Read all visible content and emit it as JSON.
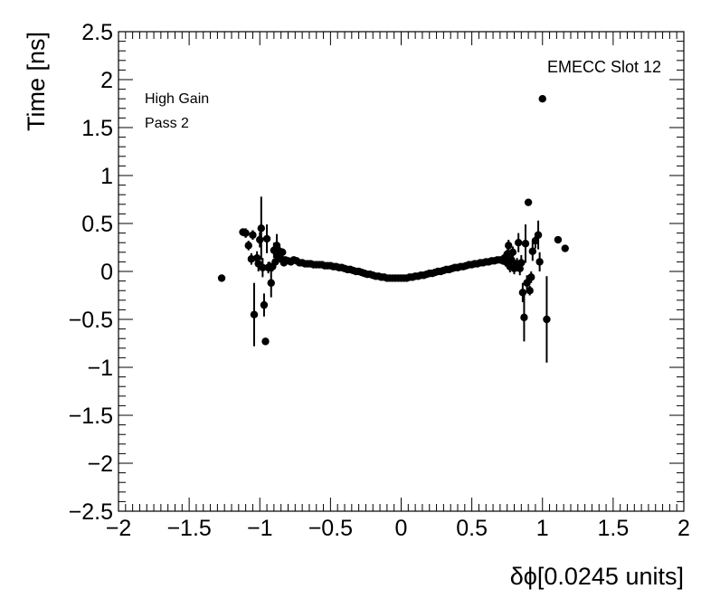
{
  "chart_data": {
    "type": "scatter",
    "title": "",
    "xlabel": "δϕ[0.0245 units]",
    "ylabel": "Time [ns]",
    "xlim": [
      -2,
      2
    ],
    "ylim": [
      -2.5,
      2.5
    ],
    "x_ticks": [
      -2,
      -1.5,
      -1,
      -0.5,
      0,
      0.5,
      1,
      1.5,
      2
    ],
    "x_tick_labels": [
      "−2",
      "−1.5",
      "−1",
      "−0.5",
      "0",
      "0.5",
      "1",
      "1.5",
      "2"
    ],
    "y_ticks": [
      -2.5,
      -2,
      -1.5,
      -1,
      -0.5,
      0,
      0.5,
      1,
      1.5,
      2,
      2.5
    ],
    "y_tick_labels": [
      "−2.5",
      "−2",
      "−1.5",
      "−1",
      "−0.5",
      "0",
      "0.5",
      "1",
      "1.5",
      "2",
      "2.5"
    ],
    "grid": false,
    "legend": "none",
    "marker_color": "#000000",
    "annotations": {
      "top_right": "EMECC Slot 12",
      "top_left_line1": "High Gain",
      "top_left_line2": "Pass 2"
    },
    "points": [
      {
        "x": -1.27,
        "y": -0.07,
        "err": 0.0
      },
      {
        "x": -1.12,
        "y": 0.41,
        "err": 0.04
      },
      {
        "x": -1.1,
        "y": 0.4,
        "err": 0.05
      },
      {
        "x": -1.08,
        "y": 0.27,
        "err": 0.05
      },
      {
        "x": -1.06,
        "y": 0.13,
        "err": 0.06
      },
      {
        "x": -1.05,
        "y": 0.38,
        "err": 0.05
      },
      {
        "x": -1.04,
        "y": -0.45,
        "err": 0.33
      },
      {
        "x": -1.02,
        "y": 0.14,
        "err": 0.07
      },
      {
        "x": -1.01,
        "y": 0.08,
        "err": 0.08
      },
      {
        "x": -1.0,
        "y": 0.33,
        "err": 0.08
      },
      {
        "x": -0.99,
        "y": 0.45,
        "err": 0.33
      },
      {
        "x": -0.98,
        "y": 0.04,
        "err": 0.1
      },
      {
        "x": -0.97,
        "y": -0.35,
        "err": 0.12
      },
      {
        "x": -0.96,
        "y": -0.73,
        "err": 0.0
      },
      {
        "x": -0.95,
        "y": 0.34,
        "err": 0.15
      },
      {
        "x": -0.94,
        "y": 0.04,
        "err": 0.06
      },
      {
        "x": -0.93,
        "y": 0.05,
        "err": 0.05
      },
      {
        "x": -0.92,
        "y": -0.12,
        "err": 0.15
      },
      {
        "x": -0.91,
        "y": 0.05,
        "err": 0.05
      },
      {
        "x": -0.9,
        "y": 0.22,
        "err": 0.08
      },
      {
        "x": -0.89,
        "y": 0.1,
        "err": 0.05
      },
      {
        "x": -0.88,
        "y": 0.27,
        "err": 0.12
      },
      {
        "x": -0.87,
        "y": 0.17,
        "err": 0.06
      },
      {
        "x": -0.86,
        "y": 0.21,
        "err": 0.05
      },
      {
        "x": -0.85,
        "y": 0.13,
        "err": 0.04
      },
      {
        "x": -0.84,
        "y": 0.2,
        "err": 0.04
      },
      {
        "x": -0.83,
        "y": 0.09,
        "err": 0.03
      },
      {
        "x": -0.82,
        "y": 0.12,
        "err": 0.02
      },
      {
        "x": -0.8,
        "y": 0.11,
        "err": 0.02
      },
      {
        "x": -0.78,
        "y": 0.1,
        "err": 0.0
      },
      {
        "x": -0.76,
        "y": 0.12,
        "err": 0.0
      },
      {
        "x": -0.74,
        "y": 0.11,
        "err": 0.0
      },
      {
        "x": -0.72,
        "y": 0.09,
        "err": 0.0
      },
      {
        "x": -0.7,
        "y": 0.09,
        "err": 0.0
      },
      {
        "x": -0.68,
        "y": 0.08,
        "err": 0.0
      },
      {
        "x": -0.66,
        "y": 0.08,
        "err": 0.0
      },
      {
        "x": -0.64,
        "y": 0.08,
        "err": 0.0
      },
      {
        "x": -0.62,
        "y": 0.07,
        "err": 0.0
      },
      {
        "x": -0.6,
        "y": 0.07,
        "err": 0.0
      },
      {
        "x": -0.58,
        "y": 0.07,
        "err": 0.0
      },
      {
        "x": -0.56,
        "y": 0.07,
        "err": 0.0
      },
      {
        "x": -0.54,
        "y": 0.06,
        "err": 0.0
      },
      {
        "x": -0.52,
        "y": 0.06,
        "err": 0.0
      },
      {
        "x": -0.5,
        "y": 0.06,
        "err": 0.0
      },
      {
        "x": -0.48,
        "y": 0.05,
        "err": 0.0
      },
      {
        "x": -0.46,
        "y": 0.05,
        "err": 0.0
      },
      {
        "x": -0.44,
        "y": 0.04,
        "err": 0.0
      },
      {
        "x": -0.42,
        "y": 0.04,
        "err": 0.0
      },
      {
        "x": -0.4,
        "y": 0.03,
        "err": 0.0
      },
      {
        "x": -0.38,
        "y": 0.02,
        "err": 0.0
      },
      {
        "x": -0.36,
        "y": 0.02,
        "err": 0.0
      },
      {
        "x": -0.34,
        "y": 0.01,
        "err": 0.0
      },
      {
        "x": -0.32,
        "y": 0.0,
        "err": 0.0
      },
      {
        "x": -0.3,
        "y": 0.0,
        "err": 0.0
      },
      {
        "x": -0.28,
        "y": -0.01,
        "err": 0.0
      },
      {
        "x": -0.26,
        "y": -0.02,
        "err": 0.0
      },
      {
        "x": -0.24,
        "y": -0.03,
        "err": 0.0
      },
      {
        "x": -0.22,
        "y": -0.03,
        "err": 0.0
      },
      {
        "x": -0.2,
        "y": -0.04,
        "err": 0.0
      },
      {
        "x": -0.18,
        "y": -0.05,
        "err": 0.0
      },
      {
        "x": -0.16,
        "y": -0.05,
        "err": 0.0
      },
      {
        "x": -0.14,
        "y": -0.06,
        "err": 0.0
      },
      {
        "x": -0.12,
        "y": -0.06,
        "err": 0.0
      },
      {
        "x": -0.1,
        "y": -0.07,
        "err": 0.0
      },
      {
        "x": -0.08,
        "y": -0.07,
        "err": 0.0
      },
      {
        "x": -0.06,
        "y": -0.07,
        "err": 0.0
      },
      {
        "x": -0.04,
        "y": -0.07,
        "err": 0.0
      },
      {
        "x": -0.02,
        "y": -0.07,
        "err": 0.0
      },
      {
        "x": 0.0,
        "y": -0.07,
        "err": 0.0
      },
      {
        "x": 0.02,
        "y": -0.07,
        "err": 0.0
      },
      {
        "x": 0.04,
        "y": -0.07,
        "err": 0.0
      },
      {
        "x": 0.06,
        "y": -0.06,
        "err": 0.0
      },
      {
        "x": 0.08,
        "y": -0.06,
        "err": 0.0
      },
      {
        "x": 0.1,
        "y": -0.05,
        "err": 0.0
      },
      {
        "x": 0.12,
        "y": -0.05,
        "err": 0.0
      },
      {
        "x": 0.14,
        "y": -0.04,
        "err": 0.0
      },
      {
        "x": 0.16,
        "y": -0.04,
        "err": 0.0
      },
      {
        "x": 0.18,
        "y": -0.03,
        "err": 0.0
      },
      {
        "x": 0.2,
        "y": -0.02,
        "err": 0.0
      },
      {
        "x": 0.22,
        "y": -0.02,
        "err": 0.0
      },
      {
        "x": 0.24,
        "y": -0.01,
        "err": 0.0
      },
      {
        "x": 0.26,
        "y": 0.0,
        "err": 0.0
      },
      {
        "x": 0.28,
        "y": 0.0,
        "err": 0.0
      },
      {
        "x": 0.3,
        "y": 0.01,
        "err": 0.0
      },
      {
        "x": 0.32,
        "y": 0.02,
        "err": 0.0
      },
      {
        "x": 0.34,
        "y": 0.02,
        "err": 0.0
      },
      {
        "x": 0.36,
        "y": 0.03,
        "err": 0.0
      },
      {
        "x": 0.38,
        "y": 0.04,
        "err": 0.0
      },
      {
        "x": 0.4,
        "y": 0.04,
        "err": 0.0
      },
      {
        "x": 0.42,
        "y": 0.05,
        "err": 0.0
      },
      {
        "x": 0.44,
        "y": 0.05,
        "err": 0.0
      },
      {
        "x": 0.46,
        "y": 0.06,
        "err": 0.0
      },
      {
        "x": 0.48,
        "y": 0.07,
        "err": 0.0
      },
      {
        "x": 0.5,
        "y": 0.07,
        "err": 0.0
      },
      {
        "x": 0.52,
        "y": 0.08,
        "err": 0.0
      },
      {
        "x": 0.54,
        "y": 0.08,
        "err": 0.0
      },
      {
        "x": 0.56,
        "y": 0.09,
        "err": 0.0
      },
      {
        "x": 0.58,
        "y": 0.09,
        "err": 0.0
      },
      {
        "x": 0.6,
        "y": 0.1,
        "err": 0.0
      },
      {
        "x": 0.62,
        "y": 0.1,
        "err": 0.0
      },
      {
        "x": 0.64,
        "y": 0.11,
        "err": 0.0
      },
      {
        "x": 0.66,
        "y": 0.11,
        "err": 0.0
      },
      {
        "x": 0.68,
        "y": 0.12,
        "err": 0.02
      },
      {
        "x": 0.7,
        "y": 0.12,
        "err": 0.03
      },
      {
        "x": 0.72,
        "y": 0.11,
        "err": 0.04
      },
      {
        "x": 0.73,
        "y": 0.14,
        "err": 0.05
      },
      {
        "x": 0.74,
        "y": 0.1,
        "err": 0.05
      },
      {
        "x": 0.75,
        "y": 0.18,
        "err": 0.05
      },
      {
        "x": 0.76,
        "y": 0.27,
        "err": 0.06
      },
      {
        "x": 0.77,
        "y": 0.05,
        "err": 0.06
      },
      {
        "x": 0.78,
        "y": 0.12,
        "err": 0.06
      },
      {
        "x": 0.79,
        "y": 0.2,
        "err": 0.06
      },
      {
        "x": 0.8,
        "y": 0.03,
        "err": 0.06
      },
      {
        "x": 0.81,
        "y": 0.06,
        "err": 0.06
      },
      {
        "x": 0.82,
        "y": 0.08,
        "err": 0.06
      },
      {
        "x": 0.83,
        "y": 0.3,
        "err": 0.1
      },
      {
        "x": 0.84,
        "y": 0.03,
        "err": 0.07
      },
      {
        "x": 0.85,
        "y": 0.09,
        "err": 0.08
      },
      {
        "x": 0.86,
        "y": -0.22,
        "err": 0.1
      },
      {
        "x": 0.87,
        "y": -0.48,
        "err": 0.25
      },
      {
        "x": 0.88,
        "y": 0.29,
        "err": 0.2
      },
      {
        "x": 0.89,
        "y": -0.12,
        "err": 0.08
      },
      {
        "x": 0.9,
        "y": 0.72,
        "err": 0.0
      },
      {
        "x": 0.91,
        "y": -0.2,
        "err": 0.05
      },
      {
        "x": 0.92,
        "y": -0.06,
        "err": 0.06
      },
      {
        "x": 0.93,
        "y": 0.21,
        "err": 0.1
      },
      {
        "x": 0.95,
        "y": 0.32,
        "err": 0.08
      },
      {
        "x": 0.97,
        "y": 0.38,
        "err": 0.15
      },
      {
        "x": 0.98,
        "y": 0.1,
        "err": 0.1
      },
      {
        "x": 1.0,
        "y": 1.8,
        "err": 0.0
      },
      {
        "x": 1.03,
        "y": -0.5,
        "err": 0.45
      },
      {
        "x": 1.11,
        "y": 0.33,
        "err": 0.0
      },
      {
        "x": 1.16,
        "y": 0.24,
        "err": 0.0
      }
    ]
  }
}
